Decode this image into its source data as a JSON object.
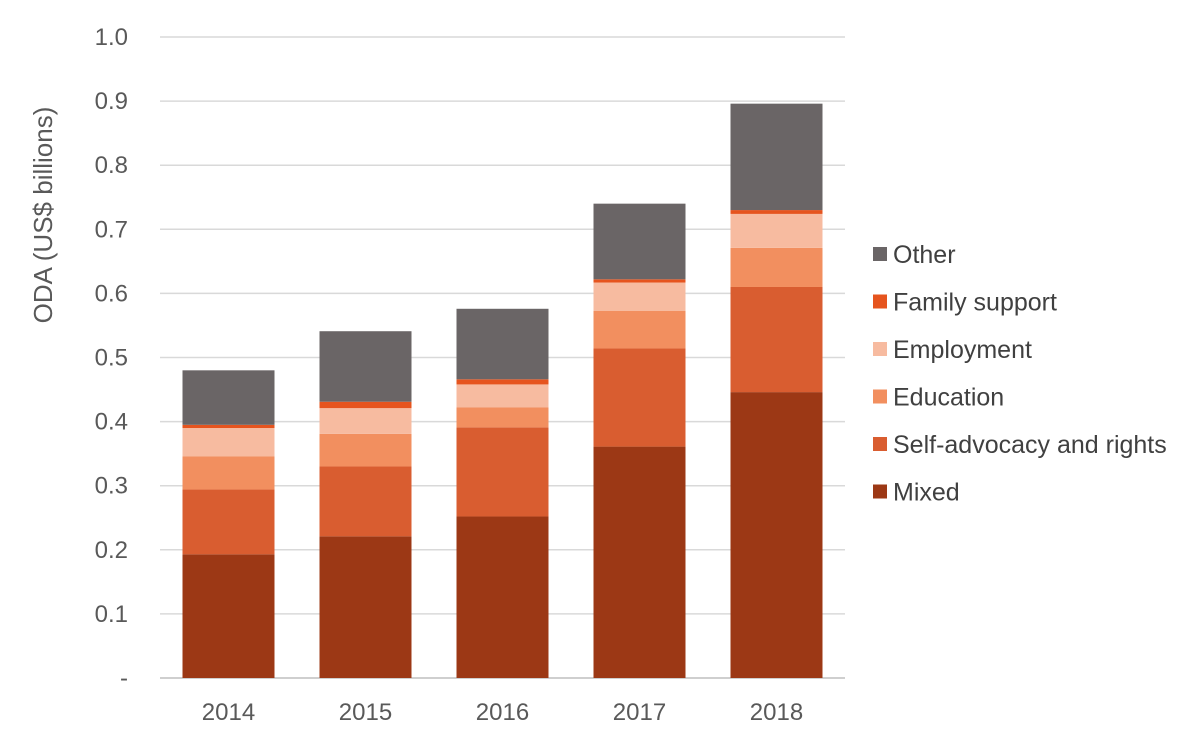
{
  "chart_data": {
    "type": "bar",
    "stacked": true,
    "categories": [
      "2014",
      "2015",
      "2016",
      "2017",
      "2018"
    ],
    "series": [
      {
        "name": "Mixed",
        "color": "#9c3815",
        "values": [
          0.193,
          0.221,
          0.252,
          0.361,
          0.446
        ]
      },
      {
        "name": "Self-advocacy and rights",
        "color": "#d95d30",
        "values": [
          0.101,
          0.109,
          0.139,
          0.153,
          0.164
        ]
      },
      {
        "name": "Education",
        "color": "#f28f5f",
        "values": [
          0.052,
          0.051,
          0.031,
          0.059,
          0.061
        ]
      },
      {
        "name": "Employment",
        "color": "#f7bba0",
        "values": [
          0.044,
          0.04,
          0.036,
          0.044,
          0.053
        ]
      },
      {
        "name": "Family support",
        "color": "#e6541e",
        "values": [
          0.005,
          0.01,
          0.008,
          0.005,
          0.006
        ]
      },
      {
        "name": "Other",
        "color": "#6a6566",
        "values": [
          0.085,
          0.11,
          0.11,
          0.118,
          0.166
        ]
      }
    ],
    "yticks": [
      "-",
      "0.1",
      "0.2",
      "0.3",
      "0.4",
      "0.5",
      "0.6",
      "0.7",
      "0.8",
      "0.9",
      "1.0"
    ],
    "ylim": [
      0,
      1.0
    ],
    "ylabel": "ODA (US$ billions)",
    "xlabel": "",
    "title": "",
    "grid": true,
    "legend_position": "right",
    "legend_order": [
      "Other",
      "Family support",
      "Employment",
      "Education",
      "Self-advocacy and rights",
      "Mixed"
    ]
  }
}
